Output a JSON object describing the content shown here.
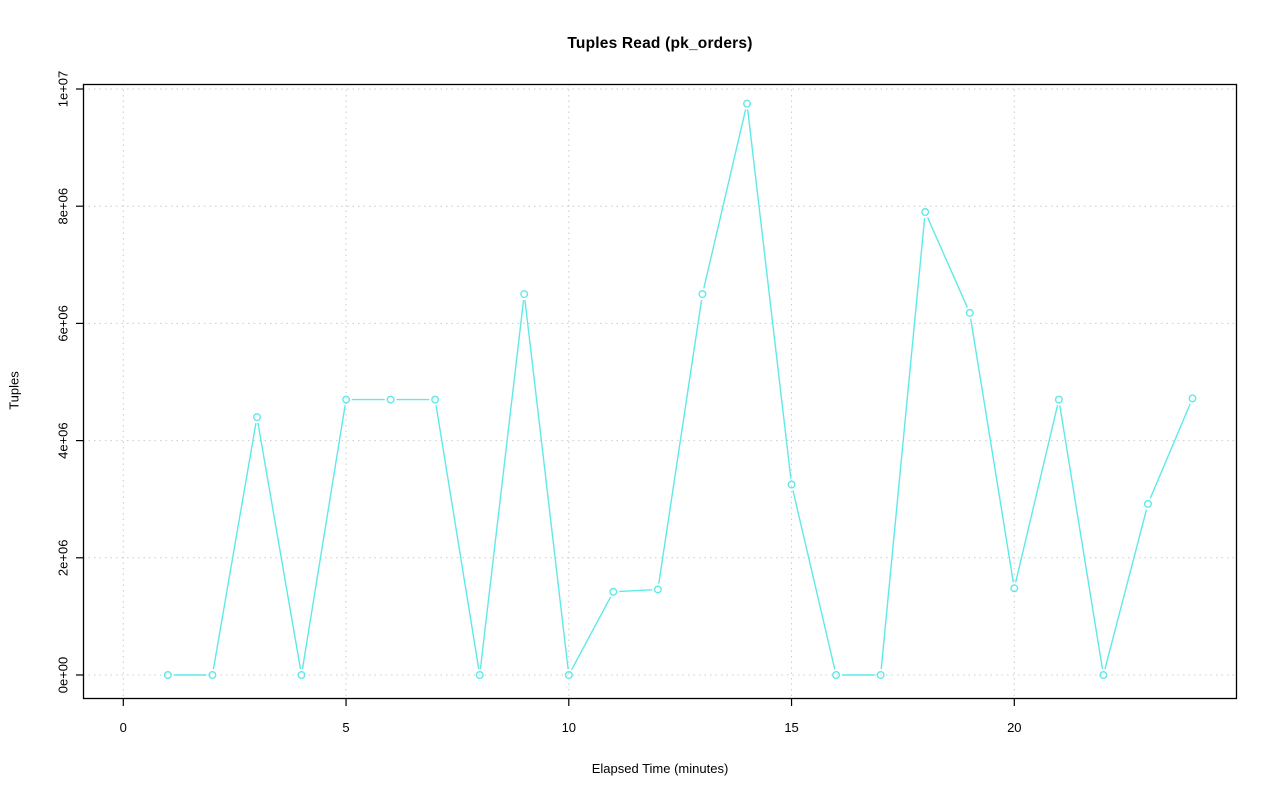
{
  "chart_data": {
    "type": "line",
    "title": "Tuples Read (pk_orders)",
    "xlabel": "Elapsed Time (minutes)",
    "ylabel": "Tuples",
    "x": [
      1,
      2,
      3,
      4,
      5,
      6,
      7,
      8,
      9,
      10,
      11,
      12,
      13,
      14,
      15,
      16,
      17,
      18,
      19,
      20,
      21,
      22,
      23,
      24
    ],
    "values": [
      0,
      0,
      4400000,
      0,
      4700000,
      4700000,
      4700000,
      0,
      6500000,
      0,
      1420000,
      1460000,
      6500000,
      9750000,
      3250000,
      0,
      0,
      7900000,
      6180000,
      1480000,
      4700000,
      0,
      2920000,
      4720000
    ],
    "xticks": [
      0,
      5,
      10,
      15,
      20
    ],
    "xtick_labels": [
      "0",
      "5",
      "10",
      "15",
      "20"
    ],
    "ytick_values": [
      0,
      2000000,
      4000000,
      6000000,
      8000000,
      10000000
    ],
    "ytick_labels": [
      "0e+00",
      "2e+06",
      "4e+06",
      "6e+06",
      "8e+06",
      "1e+07"
    ],
    "xlim": [
      0,
      24
    ],
    "ylim": [
      0,
      10000000
    ],
    "grid": true,
    "legend": "none",
    "marker": "open-circle",
    "line_color": "#5fe9e9",
    "grid_color": "#cccccc",
    "frame_color": "#000000"
  }
}
